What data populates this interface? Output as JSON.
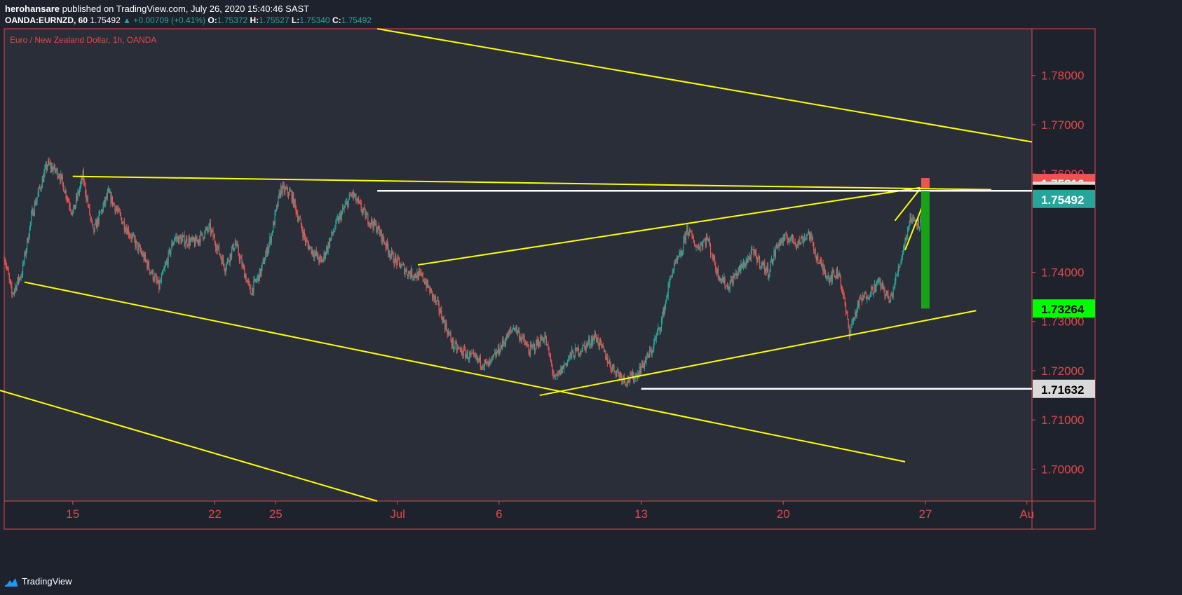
{
  "header": {
    "publisher": "herohansare",
    "published_text": "published on TradingView.com, July 26, 2020 15:40:46 SAST",
    "symbol": "OANDA:EURNZD, 60",
    "last": "1.75492",
    "change": "▲ +0.00709 (+0.41%)",
    "o_label": "O:",
    "o_value": "1.75372",
    "h_label": "H:",
    "h_value": "1.75527",
    "l_label": "L:",
    "l_value": "1.75340",
    "c_label": "C:",
    "c_value": "1.75492"
  },
  "footer": {
    "brand": "TradingView"
  },
  "colors": {
    "background": "#2a2e39",
    "frame": "#1e222d",
    "border": "#e0484a",
    "axis_text": "#e0484a",
    "bull": "#26a69a",
    "bear": "#ef5350",
    "drawing": "#ffff00",
    "level": "#ffffff",
    "target": "#1aa11a"
  },
  "chart_data": {
    "type": "candlestick",
    "title": "Euro / New Zealand Dollar, 1h, OANDA",
    "x_ticks": [
      "15",
      "22",
      "25",
      "Jul",
      "6",
      "13",
      "20",
      "27",
      "Au"
    ],
    "x_tick_dates": [
      "2020-06-15",
      "2020-06-22",
      "2020-06-25",
      "2020-07-01",
      "2020-07-06",
      "2020-07-13",
      "2020-07-20",
      "2020-07-27",
      "2020-08-01"
    ],
    "y_ticks": [
      "1.78000",
      "1.77000",
      "1.76000",
      "1.74000",
      "1.73000",
      "1.72000",
      "1.71000",
      "1.70000"
    ],
    "ylim": [
      1.6935,
      1.7895
    ],
    "xlim": [
      "2020-06-11T15:00",
      "2020-08-01T06:00"
    ],
    "price_labels": [
      {
        "text": "1.75816",
        "value": 1.75816,
        "bg": "#ef5350",
        "fg": "#ffffff"
      },
      {
        "text": "1.75656",
        "value": 1.75656,
        "bg": "#d9d9d9",
        "fg": "#000000"
      },
      {
        "text": "1.75593",
        "value": 1.75593,
        "bg": "#000000",
        "fg": "#ffffff"
      },
      {
        "text": "1.75492",
        "value": 1.75492,
        "bg": "#26a69a",
        "fg": "#ffffff"
      },
      {
        "text": "1.73264",
        "value": 1.73264,
        "bg": "#00ff00",
        "fg": "#000000"
      },
      {
        "text": "1.71632",
        "value": 1.71632,
        "bg": "#d9d9d9",
        "fg": "#000000"
      }
    ],
    "price_path": [
      [
        "2020-06-11T15:00",
        1.7435
      ],
      [
        "2020-06-12T00:00",
        1.7355
      ],
      [
        "2020-06-12T12:00",
        1.74
      ],
      [
        "2020-06-13T00:00",
        1.752
      ],
      [
        "2020-06-13T18:00",
        1.762
      ],
      [
        "2020-06-14T08:00",
        1.76
      ],
      [
        "2020-06-15T00:00",
        1.752
      ],
      [
        "2020-06-15T12:00",
        1.7595
      ],
      [
        "2020-06-16T00:00",
        1.748
      ],
      [
        "2020-06-16T18:00",
        1.756
      ],
      [
        "2020-06-17T12:00",
        1.75
      ],
      [
        "2020-06-18T12:00",
        1.743
      ],
      [
        "2020-06-19T06:00",
        1.737
      ],
      [
        "2020-06-20T00:00",
        1.747
      ],
      [
        "2020-06-21T00:00",
        1.746
      ],
      [
        "2020-06-21T18:00",
        1.749
      ],
      [
        "2020-06-22T12:00",
        1.741
      ],
      [
        "2020-06-23T00:00",
        1.746
      ],
      [
        "2020-06-23T18:00",
        1.736
      ],
      [
        "2020-06-24T06:00",
        1.74
      ],
      [
        "2020-06-24T18:00",
        1.747
      ],
      [
        "2020-06-25T06:00",
        1.757
      ],
      [
        "2020-06-25T18:00",
        1.756
      ],
      [
        "2020-06-26T12:00",
        1.746
      ],
      [
        "2020-06-27T06:00",
        1.742
      ],
      [
        "2020-06-28T00:00",
        1.75
      ],
      [
        "2020-06-28T18:00",
        1.756
      ],
      [
        "2020-06-29T12:00",
        1.751
      ],
      [
        "2020-06-30T00:00",
        1.749
      ],
      [
        "2020-06-30T18:00",
        1.743
      ],
      [
        "2020-07-01T12:00",
        1.74
      ],
      [
        "2020-07-02T06:00",
        1.739
      ],
      [
        "2020-07-03T00:00",
        1.733
      ],
      [
        "2020-07-03T18:00",
        1.725
      ],
      [
        "2020-07-04T12:00",
        1.723
      ],
      [
        "2020-07-05T12:00",
        1.721
      ],
      [
        "2020-07-06T06:00",
        1.726
      ],
      [
        "2020-07-06T18:00",
        1.729
      ],
      [
        "2020-07-07T12:00",
        1.724
      ],
      [
        "2020-07-08T06:00",
        1.727
      ],
      [
        "2020-07-08T18:00",
        1.718
      ],
      [
        "2020-07-09T12:00",
        1.723
      ],
      [
        "2020-07-10T06:00",
        1.725
      ],
      [
        "2020-07-10T18:00",
        1.727
      ],
      [
        "2020-07-11T12:00",
        1.721
      ],
      [
        "2020-07-12T06:00",
        1.718
      ],
      [
        "2020-07-12T18:00",
        1.719
      ],
      [
        "2020-07-13T12:00",
        1.724
      ],
      [
        "2020-07-14T00:00",
        1.73
      ],
      [
        "2020-07-14T12:00",
        1.74
      ],
      [
        "2020-07-15T00:00",
        1.744
      ],
      [
        "2020-07-15T06:00",
        1.749
      ],
      [
        "2020-07-15T18:00",
        1.745
      ],
      [
        "2020-07-16T06:00",
        1.747
      ],
      [
        "2020-07-16T18:00",
        1.74
      ],
      [
        "2020-07-17T06:00",
        1.737
      ],
      [
        "2020-07-17T18:00",
        1.74
      ],
      [
        "2020-07-18T12:00",
        1.744
      ],
      [
        "2020-07-19T06:00",
        1.74
      ],
      [
        "2020-07-19T18:00",
        1.746
      ],
      [
        "2020-07-20T06:00",
        1.747
      ],
      [
        "2020-07-20T18:00",
        1.746
      ],
      [
        "2020-07-21T06:00",
        1.748
      ],
      [
        "2020-07-21T18:00",
        1.742
      ],
      [
        "2020-07-22T06:00",
        1.739
      ],
      [
        "2020-07-22T18:00",
        1.74
      ],
      [
        "2020-07-23T06:00",
        1.728
      ],
      [
        "2020-07-23T18:00",
        1.734
      ],
      [
        "2020-07-24T06:00",
        1.736
      ],
      [
        "2020-07-24T18:00",
        1.738
      ],
      [
        "2020-07-25T06:00",
        1.734
      ],
      [
        "2020-07-25T18:00",
        1.742
      ],
      [
        "2020-07-26T06:00",
        1.751
      ],
      [
        "2020-07-26T18:00",
        1.75
      ],
      [
        "2020-07-27T00:00",
        1.7549
      ]
    ],
    "trendlines": [
      {
        "name": "outer channel top",
        "from": [
          "2020-06-30T00:00",
          1.7895
        ],
        "to": [
          "2020-08-01T06:00",
          1.7665
        ]
      },
      {
        "name": "channel lower",
        "from": [
          "2020-06-11T00:00",
          1.7165
        ],
        "to": [
          "2020-06-30T00:00",
          1.6935
        ]
      },
      {
        "name": "descending support",
        "from": [
          "2020-06-12T15:00",
          1.738
        ],
        "to": [
          "2020-07-26T00:00",
          1.7015
        ]
      },
      {
        "name": "triangle top",
        "from": [
          "2020-06-15T00:00",
          1.7595
        ],
        "to": [
          "2020-07-30T06:00",
          1.7568
        ]
      },
      {
        "name": "rising wedge upper",
        "from": [
          "2020-07-02T00:00",
          1.7415
        ],
        "to": [
          "2020-07-26T18:00",
          1.7572
        ]
      },
      {
        "name": "rising support",
        "from": [
          "2020-07-08T00:00",
          1.715
        ],
        "to": [
          "2020-07-29T12:00",
          1.7322
        ]
      },
      {
        "name": "micro channel top",
        "from": [
          "2020-07-25T12:00",
          1.7505
        ],
        "to": [
          "2020-07-26T18:00",
          1.757
        ]
      },
      {
        "name": "micro channel bottom",
        "from": [
          "2020-07-26T00:00",
          1.7445
        ],
        "to": [
          "2020-07-27T00:00",
          1.755
        ]
      }
    ],
    "horizontal_levels": [
      {
        "value": 1.75656,
        "from": "2020-06-30T00:00",
        "to": "2020-08-01T06:00"
      },
      {
        "value": 1.71632,
        "from": "2020-07-13T00:00",
        "to": "2020-08-01T06:00"
      }
    ],
    "target_bar": {
      "date": "2020-07-27T00:00",
      "from": 1.7565,
      "to": 1.73264
    },
    "entry_marker": {
      "date": "2020-07-27T00:00",
      "value": 1.75816
    }
  }
}
